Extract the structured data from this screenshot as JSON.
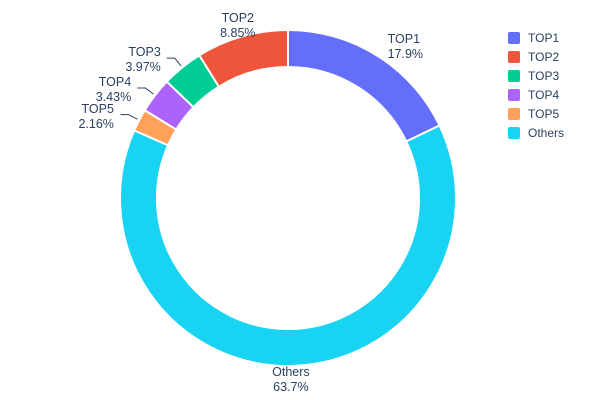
{
  "page": {
    "background": "#ffffff"
  },
  "chart_data": {
    "type": "pie",
    "subtype": "donut",
    "title": "",
    "hole_ratio": 0.78,
    "categories": [
      "TOP1",
      "TOP2",
      "TOP3",
      "TOP4",
      "TOP5",
      "Others"
    ],
    "values": [
      17.9,
      8.85,
      3.97,
      3.43,
      2.16,
      63.7
    ],
    "value_labels": [
      "17.9%",
      "8.85%",
      "3.97%",
      "3.43%",
      "2.16%",
      "63.7%"
    ],
    "colors": [
      "#636EFA",
      "#EF553B",
      "#00CC96",
      "#AB63FA",
      "#FFA15A",
      "#19D3F3"
    ],
    "legend": {
      "position": "top-right",
      "entries": [
        "TOP1",
        "TOP2",
        "TOP3",
        "TOP4",
        "TOP5",
        "Others"
      ]
    },
    "layout": {
      "start_angle_deg": 0,
      "direction": "clockwise",
      "clockwise_slice_order": [
        0,
        5,
        4,
        3,
        2,
        1
      ],
      "label_position": "outside",
      "leader_lines_below_percent": 5,
      "text_color": "#2a3f5f",
      "slice_gap_color": "#ffffff"
    }
  }
}
